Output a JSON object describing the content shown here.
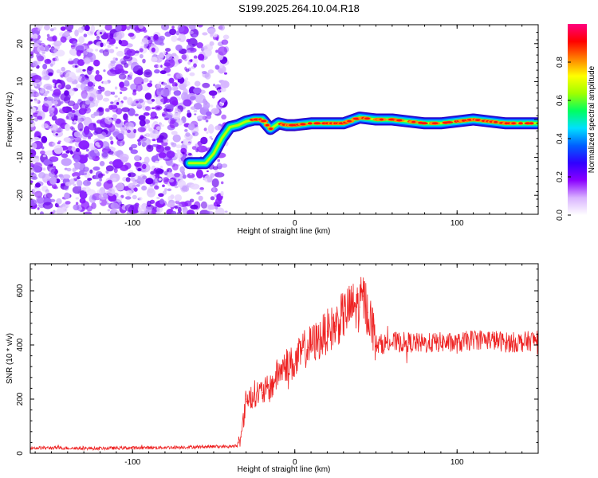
{
  "title": "S199.2025.264.10.04.R18",
  "chart_data": [
    {
      "type": "heatmap",
      "name": "spectrogram",
      "xlabel": "Height of straight line (km)",
      "ylabel": "Frequency (Hz)",
      "xlim": [
        -163,
        150
      ],
      "ylim": [
        -25,
        25
      ],
      "xticks": [
        -100,
        0,
        100
      ],
      "yticks": [
        -20,
        -10,
        0,
        10,
        20
      ],
      "colorbar": {
        "label": "Normalized spectral amplitude",
        "range": [
          0,
          1
        ],
        "ticks": [
          "0.0",
          "0.2",
          "0.4",
          "0.6",
          "0.8"
        ],
        "tick_values": [
          0.0,
          0.2,
          0.4,
          0.6,
          0.8
        ],
        "colors": [
          "#ffffff",
          "#d9b3ff",
          "#8b00ff",
          "#3000ff",
          "#0060ff",
          "#00e0ff",
          "#00ff60",
          "#a0ff00",
          "#ffff00",
          "#ff8000",
          "#ff0000",
          "#ff0080"
        ]
      },
      "ridge_frequency": {
        "height_km": [
          -65,
          -60,
          -55,
          -50,
          -45,
          -40,
          -35,
          -30,
          -25,
          -20,
          -15,
          -10,
          -5,
          0,
          10,
          20,
          30,
          40,
          50,
          60,
          70,
          80,
          90,
          100,
          110,
          120,
          130,
          140,
          150
        ],
        "frequency_hz": [
          -11.5,
          -11.5,
          -11.5,
          -9,
          -5,
          -2,
          -1.5,
          -0.5,
          0,
          0,
          -2.5,
          -1,
          -1.5,
          -1.5,
          -1,
          -1,
          -1,
          0.5,
          0,
          0,
          -0.5,
          -1,
          -1,
          -0.5,
          0,
          -0.5,
          -1,
          -1,
          -1
        ]
      },
      "noise_region_km": [
        -163,
        -42
      ]
    },
    {
      "type": "line",
      "name": "snr",
      "xlabel": "Height of straight line (km)",
      "ylabel": "SNR (10 * v/v)",
      "xlim": [
        -163,
        150
      ],
      "ylim": [
        0,
        700
      ],
      "xticks": [
        -100,
        0,
        100
      ],
      "yticks": [
        0,
        200,
        400,
        600
      ],
      "color": "#ee2222",
      "series": [
        {
          "name": "SNR",
          "x": [
            -163,
            -150,
            -125,
            -100,
            -75,
            -50,
            -40,
            -36,
            -33,
            -30,
            -25,
            -20,
            -15,
            -10,
            -5,
            0,
            5,
            10,
            15,
            20,
            25,
            30,
            35,
            40,
            42,
            45,
            48,
            50,
            60,
            70,
            80,
            90,
            100,
            110,
            120,
            130,
            140,
            150
          ],
          "y": [
            20,
            20,
            18,
            20,
            22,
            25,
            25,
            28,
            60,
            200,
            220,
            225,
            240,
            300,
            330,
            330,
            380,
            400,
            420,
            450,
            470,
            510,
            540,
            540,
            580,
            520,
            470,
            400,
            410,
            410,
            405,
            410,
            405,
            420,
            420,
            410,
            410,
            420
          ]
        }
      ]
    }
  ]
}
